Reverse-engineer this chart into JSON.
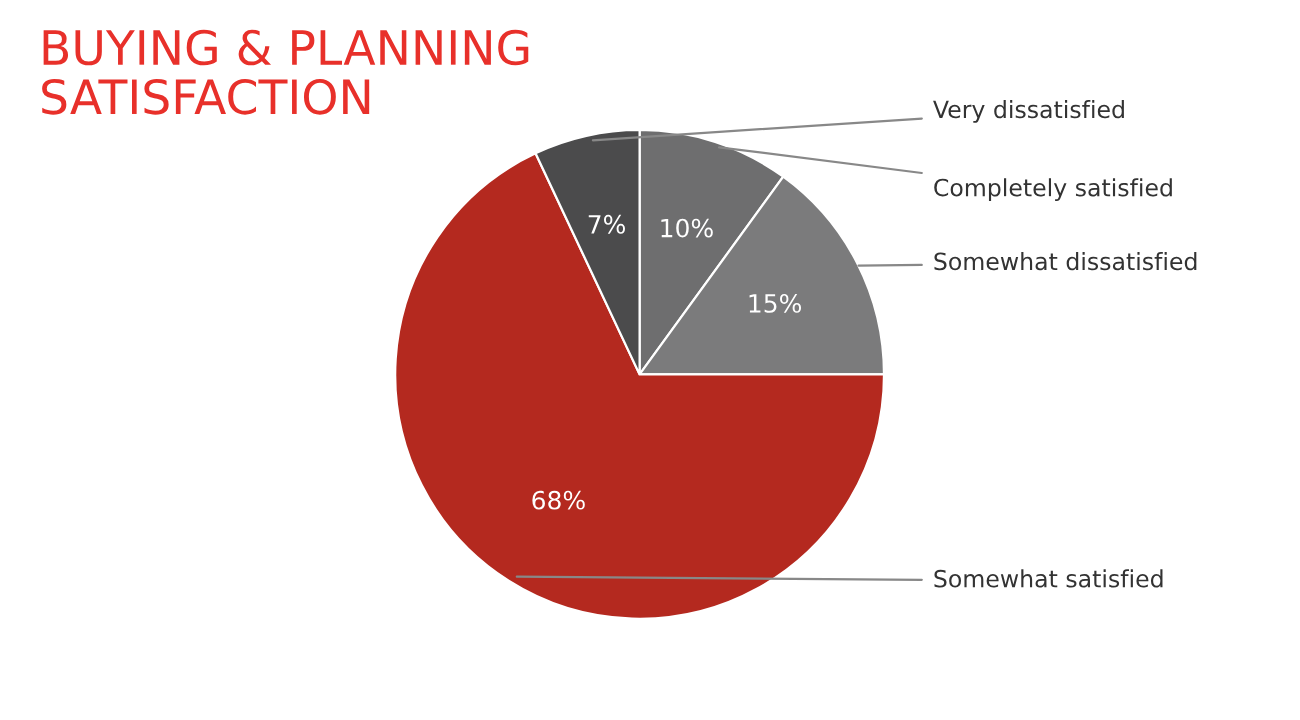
{
  "chart_data": {
    "type": "pie",
    "title": "BUYING & PLANNING\nSATISFACTION",
    "categories": [
      "Completely satisfied",
      "Somewhat dissatisfied",
      "Somewhat satisfied",
      "Very dissatisfied"
    ],
    "values": [
      10,
      15,
      68,
      7
    ],
    "colors": [
      "#6e6e6f",
      "#7b7b7c",
      "#b4291f",
      "#4b4b4c"
    ],
    "value_labels": [
      "10%",
      "15%",
      "68%",
      "7%"
    ]
  }
}
